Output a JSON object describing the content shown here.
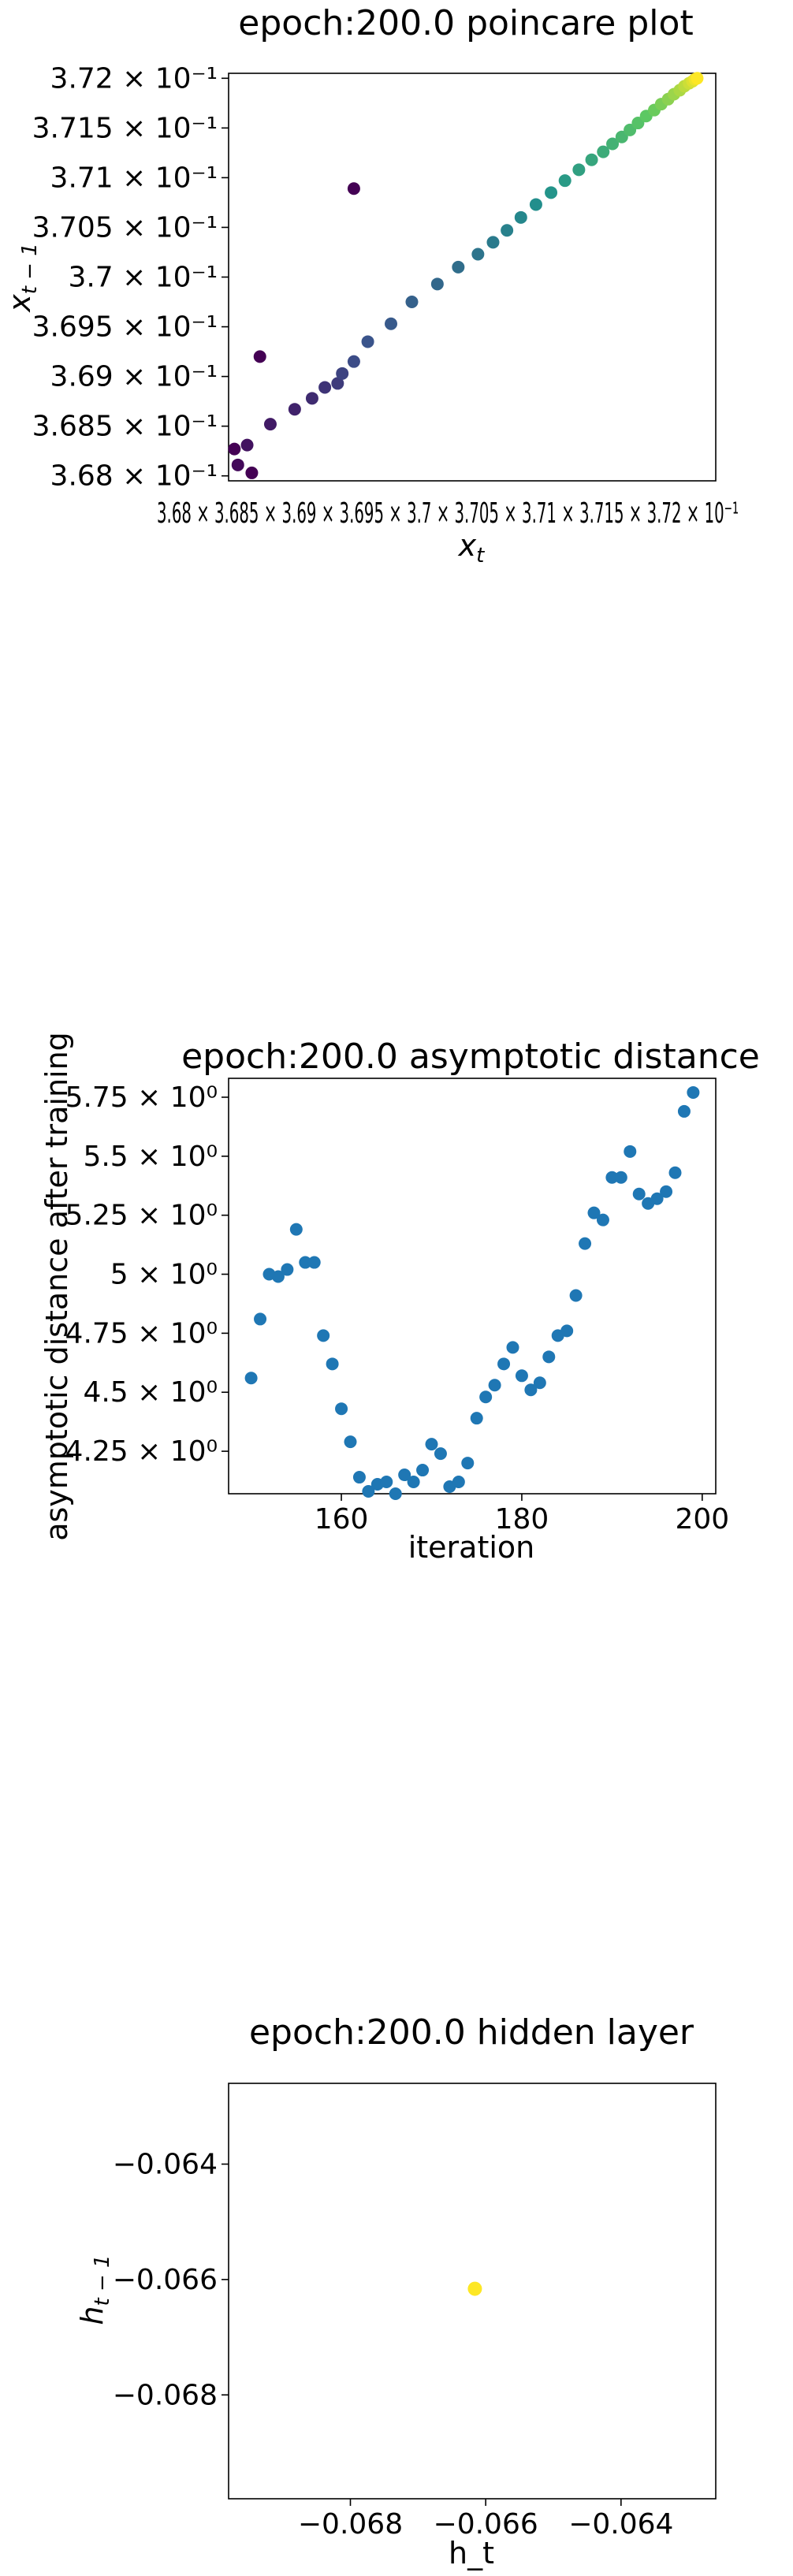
{
  "chart_data": [
    {
      "type": "scatter",
      "title": "epoch:200.0 poincare plot",
      "xlabel_base": "x",
      "xlabel_sub": "t",
      "ylabel_base": "x",
      "ylabel_sub": "t − 1",
      "xlim": [
        0.36795,
        0.37215
      ],
      "ylim": [
        0.36795,
        0.37205
      ],
      "yticks": [
        {
          "value": 0.368,
          "label": "3.68 × 10⁻¹"
        },
        {
          "value": 0.3685,
          "label": "3.685 × 10⁻¹"
        },
        {
          "value": 0.369,
          "label": "3.69 × 10⁻¹"
        },
        {
          "value": 0.3695,
          "label": "3.695 × 10⁻¹"
        },
        {
          "value": 0.37,
          "label": "3.7 × 10⁻¹"
        },
        {
          "value": 0.3705,
          "label": "3.705 × 10⁻¹"
        },
        {
          "value": 0.371,
          "label": "3.71 × 10⁻¹"
        },
        {
          "value": 0.3715,
          "label": "3.715 × 10⁻¹"
        },
        {
          "value": 0.372,
          "label": "3.72 × 10⁻¹"
        }
      ],
      "xtick_text": "3.68 × 3.685 × 3.69 × 3.695 × 3.7 × 3.705 × 3.71 × 3.715 × 3.72 × 10⁻¹",
      "colormap": [
        "#440154",
        "#3b528b",
        "#21918c",
        "#5ec962",
        "#fde725"
      ],
      "x": [
        0.36815,
        0.36803,
        0.36811,
        0.36831,
        0.36852,
        0.36867,
        0.36878,
        0.36889,
        0.36893,
        0.36903,
        0.36915,
        0.36935,
        0.36953,
        0.36975,
        0.36993,
        0.3701,
        0.37023,
        0.37035,
        0.37047,
        0.3706,
        0.37073,
        0.37085,
        0.37097,
        0.37108,
        0.37118,
        0.37126,
        0.37134,
        0.37141,
        0.37148,
        0.37155,
        0.37162,
        0.37168,
        0.37174,
        0.37179,
        0.37184,
        0.37188,
        0.37192,
        0.37195,
        0.37197,
        0.37199
      ],
      "y": [
        0.36803,
        0.36811,
        0.36831,
        0.36852,
        0.36867,
        0.36878,
        0.36889,
        0.36893,
        0.36903,
        0.36915,
        0.36935,
        0.36953,
        0.36975,
        0.36993,
        0.3701,
        0.37023,
        0.37035,
        0.37047,
        0.3706,
        0.37073,
        0.37085,
        0.37097,
        0.37108,
        0.37118,
        0.37126,
        0.37134,
        0.37141,
        0.37148,
        0.37155,
        0.37162,
        0.37168,
        0.37174,
        0.37179,
        0.37184,
        0.37188,
        0.37192,
        0.37195,
        0.37197,
        0.37199,
        0.372
      ],
      "outliers": [
        {
          "x": 0.368,
          "y": 0.36827
        },
        {
          "x": 0.36822,
          "y": 0.3692
        },
        {
          "x": 0.36903,
          "y": 0.37089
        }
      ]
    },
    {
      "type": "scatter",
      "title": "epoch:200.0 asymptotic distance",
      "xlabel": "iteration",
      "ylabel": "asymptotic distance after training",
      "xlim": [
        147.5,
        201.5
      ],
      "ylim": [
        4.07,
        5.83
      ],
      "color": "#1f77b4",
      "xticks": [
        160,
        180,
        200
      ],
      "yticks": [
        {
          "value": 4.25,
          "label": "4.25 × 10⁰"
        },
        {
          "value": 4.5,
          "label": "4.5 × 10⁰"
        },
        {
          "value": 4.75,
          "label": "4.75 × 10⁰"
        },
        {
          "value": 5.0,
          "label": "5 × 10⁰"
        },
        {
          "value": 5.25,
          "label": "5.25 × 10⁰"
        },
        {
          "value": 5.5,
          "label": "5.5 × 10⁰"
        },
        {
          "value": 5.75,
          "label": "5.75 × 10⁰"
        }
      ],
      "x": [
        150,
        151,
        152,
        153,
        154,
        155,
        156,
        157,
        158,
        159,
        160,
        161,
        162,
        163,
        164,
        165,
        166,
        167,
        168,
        169,
        170,
        171,
        172,
        173,
        174,
        175,
        176,
        177,
        178,
        179,
        180,
        181,
        182,
        183,
        184,
        185,
        186,
        187,
        188,
        189,
        190,
        191,
        192,
        193,
        194,
        195,
        196,
        197,
        198,
        199
      ],
      "y": [
        4.56,
        4.81,
        5.0,
        4.99,
        5.02,
        5.19,
        5.05,
        5.05,
        4.74,
        4.62,
        4.43,
        4.29,
        4.14,
        4.08,
        4.11,
        4.12,
        4.07,
        4.15,
        4.12,
        4.17,
        4.28,
        4.24,
        4.1,
        4.12,
        4.2,
        4.39,
        4.48,
        4.53,
        4.62,
        4.69,
        4.57,
        4.51,
        4.54,
        4.65,
        4.74,
        4.76,
        4.91,
        5.13,
        5.26,
        5.23,
        5.41,
        5.41,
        5.52,
        5.34,
        5.3,
        5.32,
        5.35,
        5.43,
        5.69,
        5.77
      ]
    },
    {
      "type": "scatter",
      "title": "epoch:200.0 hidden layer",
      "xlabel": "h_t",
      "ylabel_base": "h",
      "ylabel_sub": "t − 1",
      "xlim": [
        -0.0698,
        -0.0626
      ],
      "ylim": [
        -0.0698,
        -0.0626
      ],
      "color": "#fde725",
      "xticks": [
        {
          "value": -0.068,
          "label": "−0.068"
        },
        {
          "value": -0.066,
          "label": "−0.066"
        },
        {
          "value": -0.064,
          "label": "−0.064"
        }
      ],
      "yticks": [
        {
          "value": -0.068,
          "label": "−0.068"
        },
        {
          "value": -0.066,
          "label": "−0.066"
        },
        {
          "value": -0.064,
          "label": "−0.064"
        }
      ],
      "x": [
        -0.06616
      ],
      "y": [
        -0.06616
      ]
    }
  ]
}
